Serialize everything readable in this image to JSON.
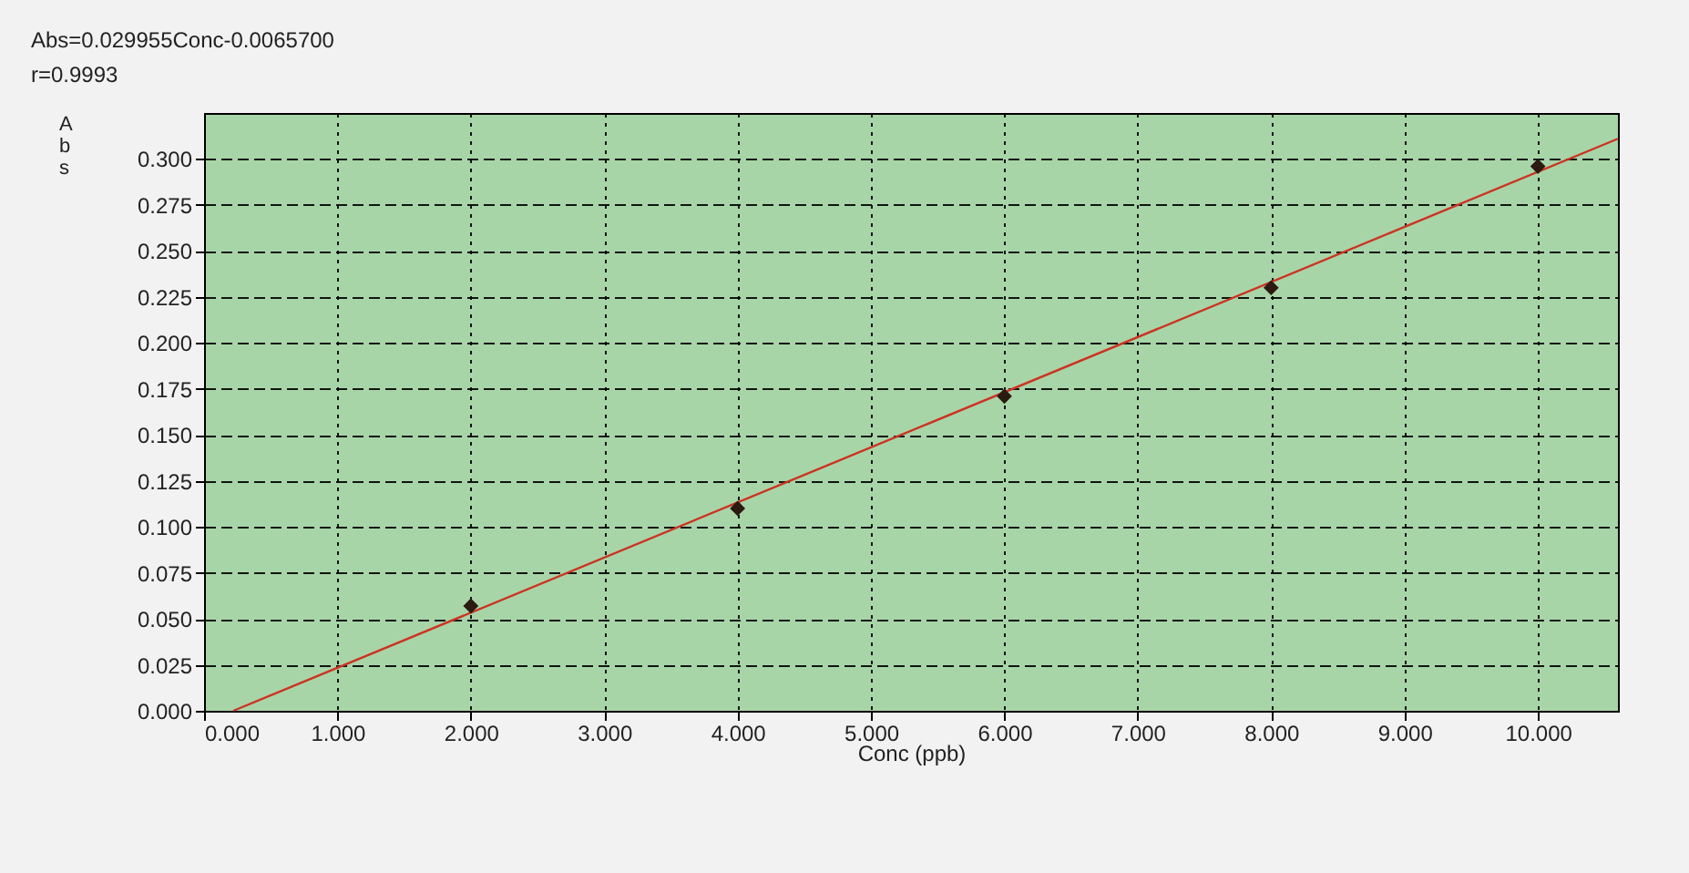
{
  "chart_data": {
    "type": "scatter",
    "xlabel": "Conc (ppb)",
    "ylabel": "Abs",
    "annotations": [
      "Abs=0.029955Conc-0.0065700",
      "r=0.9993"
    ],
    "x": [
      2,
      4,
      6,
      8,
      10
    ],
    "series": [
      {
        "color": "#2a1a10",
        "marker": "diamond",
        "values": [
          0.057,
          0.11,
          0.171,
          0.23,
          0.296
        ]
      },
      {
        "type": "line",
        "color": "#cc3322",
        "marker": "none",
        "x": [
          0.2193,
          10.6
        ],
        "values": [
          0,
          0.311
        ]
      }
    ],
    "xlim": [
      0,
      10.6
    ],
    "ylim": [
      0,
      0.325
    ],
    "xticks": [
      {
        "value": 0,
        "label": "0.000"
      },
      {
        "value": 1,
        "label": "1.000"
      },
      {
        "value": 2,
        "label": "2.000"
      },
      {
        "value": 3,
        "label": "3.000"
      },
      {
        "value": 4,
        "label": "4.000"
      },
      {
        "value": 5,
        "label": "5.000"
      },
      {
        "value": 6,
        "label": "6.000"
      },
      {
        "value": 7,
        "label": "7.000"
      },
      {
        "value": 8,
        "label": "8.000"
      },
      {
        "value": 9,
        "label": "9.000"
      },
      {
        "value": 10,
        "label": "10.000"
      }
    ],
    "yticks": [
      {
        "value": 0,
        "label": "0.000"
      },
      {
        "value": 0.025,
        "label": "0.025"
      },
      {
        "value": 0.05,
        "label": "0.050"
      },
      {
        "value": 0.075,
        "label": "0.075"
      },
      {
        "value": 0.1,
        "label": "0.100"
      },
      {
        "value": 0.125,
        "label": "0.125"
      },
      {
        "value": 0.15,
        "label": "0.150"
      },
      {
        "value": 0.175,
        "label": "0.175"
      },
      {
        "value": 0.2,
        "label": "0.200"
      },
      {
        "value": 0.225,
        "label": "0.225"
      },
      {
        "value": 0.25,
        "label": "0.250"
      },
      {
        "value": 0.275,
        "label": "0.275"
      },
      {
        "value": 0.3,
        "label": "0.300"
      }
    ],
    "grid": true
  }
}
